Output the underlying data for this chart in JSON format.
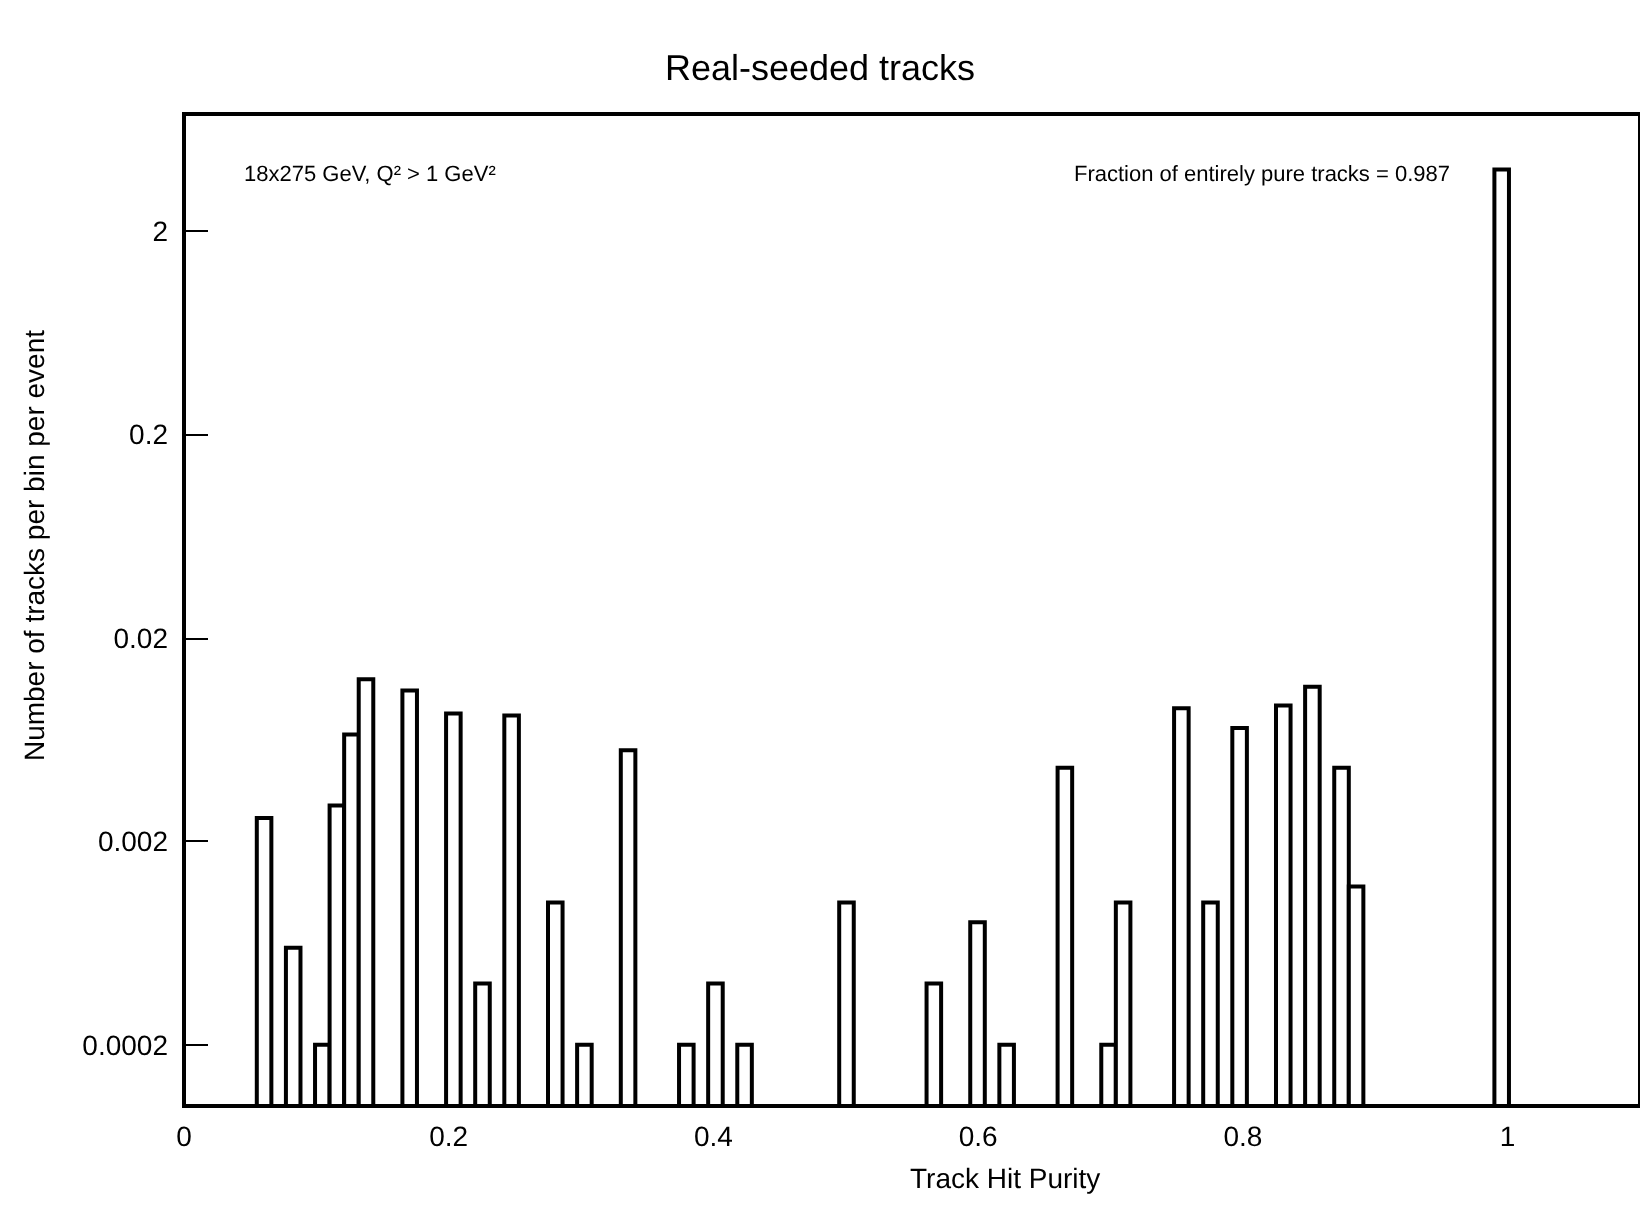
{
  "chart_data": {
    "type": "histogram",
    "title": "Real-seeded tracks",
    "xlabel": "Track Hit Purity",
    "ylabel": "Number of tracks per bin per event",
    "annotations": [
      "18x275 GeV, Q² > 1 GeV²",
      "Fraction of entirely pure tracks = 0.987"
    ],
    "bins": [
      0,
      0.011,
      0.022,
      0.033,
      0.044,
      0.055,
      0.066,
      0.077,
      0.088,
      0.099,
      0.11,
      0.121,
      0.132,
      0.143,
      0.154,
      0.165,
      0.176,
      0.187,
      0.198,
      0.209,
      0.22,
      0.231,
      0.242,
      0.253,
      0.264,
      0.275,
      0.286,
      0.297,
      0.308,
      0.319,
      0.33,
      0.341,
      0.352,
      0.363,
      0.374,
      0.385,
      0.396,
      0.407,
      0.418,
      0.429,
      0.44,
      0.451,
      0.462,
      0.473,
      0.484,
      0.495,
      0.506,
      0.517,
      0.528,
      0.539,
      0.55,
      0.561,
      0.572,
      0.583,
      0.594,
      0.605,
      0.616,
      0.627,
      0.638,
      0.649,
      0.66,
      0.671,
      0.682,
      0.693,
      0.704,
      0.715,
      0.726,
      0.737,
      0.748,
      0.759,
      0.77,
      0.781,
      0.792,
      0.803,
      0.814,
      0.825,
      0.836,
      0.847,
      0.858,
      0.869,
      0.88,
      0.891,
      0.902,
      0.913,
      0.924,
      0.935,
      0.946,
      0.957,
      0.968,
      0.979,
      0.99,
      1.001,
      1.012,
      1.023,
      1.034,
      1.045,
      1.056,
      1.067,
      1.078,
      1.089,
      1.1
    ],
    "values": [
      null,
      null,
      null,
      null,
      null,
      0.0026,
      null,
      0.0006,
      null,
      0.0002,
      0.003,
      0.0067,
      0.0125,
      null,
      null,
      0.011,
      null,
      null,
      0.0085,
      null,
      0.0004,
      null,
      0.0083,
      null,
      null,
      0.001,
      null,
      0.0002,
      null,
      null,
      0.0056,
      null,
      null,
      null,
      0.0002,
      null,
      0.0004,
      null,
      0.0002,
      null,
      null,
      null,
      null,
      null,
      null,
      0.001,
      null,
      null,
      null,
      null,
      null,
      0.0004,
      null,
      null,
      0.0008,
      null,
      0.0002,
      null,
      null,
      null,
      0.0046,
      null,
      null,
      0.0002,
      0.001,
      null,
      null,
      null,
      0.009,
      null,
      0.001,
      null,
      0.0072,
      null,
      null,
      0.0093,
      null,
      0.0115,
      null,
      0.0046,
      0.0012,
      null,
      null,
      null,
      null,
      null,
      null,
      null,
      null,
      null,
      4,
      null,
      null,
      null,
      null,
      null,
      null,
      null,
      null,
      null
    ],
    "color": "#000000",
    "log": "y",
    "xlim": [
      0,
      1.1
    ],
    "xticks": [
      0,
      0.2,
      0.4,
      0.6,
      0.8,
      1
    ],
    "ylim": [
      0.0001,
      7.5
    ],
    "yticks": [
      0.0002,
      0.002,
      0.02,
      0.2,
      2
    ]
  }
}
